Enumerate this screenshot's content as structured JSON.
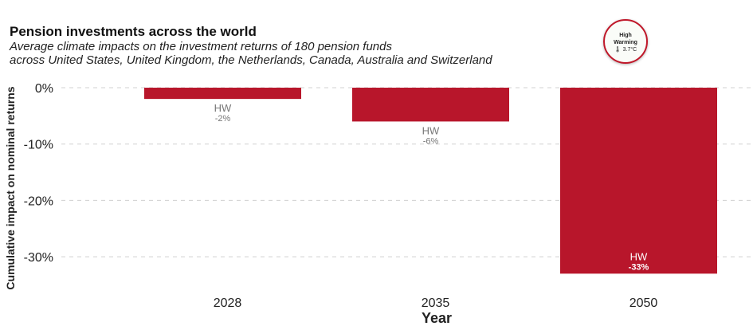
{
  "title": "Pension investments across the world",
  "subtitle_line1": "Average climate impacts on the investment returns of 180 pension funds",
  "subtitle_line2": "across United States, United Kingdom, the Netherlands, Canada, Australia and Switzerland",
  "badge": {
    "line1": "High",
    "line2": "Warming",
    "temp": "3.7°C",
    "icon": "thermometer-icon",
    "border_color": "#c0182a"
  },
  "chart_data": {
    "type": "bar",
    "categories": [
      "2028",
      "2035",
      "2050"
    ],
    "values": [
      -2,
      -6,
      -33
    ],
    "data_labels": [
      {
        "series": "HW",
        "value": "-2%"
      },
      {
        "series": "HW",
        "value": "-6%"
      },
      {
        "series": "HW",
        "value": "-33%"
      }
    ],
    "xlabel": "Year",
    "ylabel": "Cumulative impact on nominal returns",
    "yticks": [
      "0%",
      "-10%",
      "-20%",
      "-30%"
    ],
    "ytick_values": [
      0,
      -10,
      -20,
      -30
    ],
    "ylim": [
      -35,
      0
    ],
    "grid": true,
    "bar_color": "#b8162b"
  }
}
